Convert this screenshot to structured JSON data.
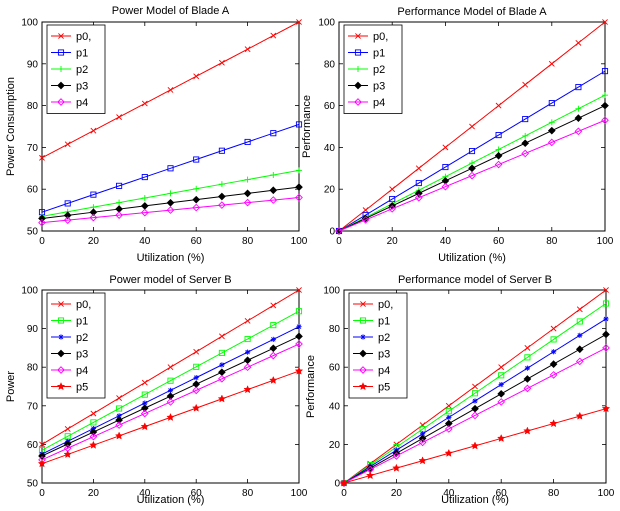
{
  "chart_data": [
    {
      "type": "line",
      "title": "Power Model of Blade A",
      "xlabel": "Utilization (%)",
      "ylabel": "Power Consumption",
      "xlim": [
        0,
        100
      ],
      "ylim": [
        50,
        100
      ],
      "xticks": [
        0,
        20,
        40,
        60,
        80,
        100
      ],
      "yticks": [
        50,
        60,
        70,
        80,
        90,
        100
      ],
      "grid": false,
      "legend_position": "top-left",
      "x": [
        0,
        10,
        20,
        30,
        40,
        50,
        60,
        70,
        80,
        90,
        100
      ],
      "series": [
        {
          "name": "p0,",
          "color": "#ff0000",
          "marker": "x",
          "values": [
            67.5,
            70.75,
            74.0,
            77.25,
            80.5,
            83.75,
            87.0,
            90.25,
            93.5,
            96.75,
            100.0
          ]
        },
        {
          "name": "p1",
          "color": "#0000ff",
          "marker": "square",
          "values": [
            54.5,
            56.6,
            58.7,
            60.8,
            62.9,
            65.0,
            67.1,
            69.2,
            71.3,
            73.4,
            75.5
          ]
        },
        {
          "name": "p2",
          "color": "#00ff00",
          "marker": "plus",
          "values": [
            53.5,
            54.6,
            55.7,
            56.8,
            57.9,
            59.0,
            60.1,
            61.2,
            62.3,
            63.4,
            64.5
          ]
        },
        {
          "name": "p3",
          "color": "#000000",
          "marker": "diamond-filled",
          "values": [
            53.0,
            53.75,
            54.5,
            55.25,
            56.0,
            56.75,
            57.5,
            58.25,
            59.0,
            59.75,
            60.5
          ]
        },
        {
          "name": "p4",
          "color": "#ff00ff",
          "marker": "diamond",
          "values": [
            52.0,
            52.6,
            53.2,
            53.8,
            54.4,
            55.0,
            55.6,
            56.2,
            56.8,
            57.4,
            58.0
          ]
        }
      ]
    },
    {
      "type": "line",
      "title": "Performance Model of Blade A",
      "xlabel": "Utilization (%)",
      "ylabel": "Performance",
      "xlim": [
        0,
        100
      ],
      "ylim": [
        0,
        100
      ],
      "xticks": [
        0,
        20,
        40,
        60,
        80,
        100
      ],
      "yticks": [
        0,
        20,
        40,
        60,
        80,
        100
      ],
      "grid": false,
      "legend_position": "top-left",
      "x": [
        0,
        10,
        20,
        30,
        40,
        50,
        60,
        70,
        80,
        90,
        100
      ],
      "series": [
        {
          "name": "p0,",
          "color": "#ff0000",
          "marker": "x",
          "values": [
            0,
            10,
            20,
            30,
            40,
            50,
            60,
            70,
            80,
            90,
            100
          ]
        },
        {
          "name": "p1",
          "color": "#0000ff",
          "marker": "square",
          "values": [
            0,
            7.65,
            15.3,
            22.95,
            30.6,
            38.25,
            45.9,
            53.55,
            61.2,
            68.85,
            76.5
          ]
        },
        {
          "name": "p2",
          "color": "#00ff00",
          "marker": "plus",
          "values": [
            0,
            6.5,
            13.0,
            19.5,
            26.0,
            32.5,
            39.0,
            45.5,
            52.0,
            58.5,
            65.0
          ]
        },
        {
          "name": "p3",
          "color": "#000000",
          "marker": "diamond-filled",
          "values": [
            0,
            6.0,
            12.0,
            18.0,
            24.0,
            30.0,
            36.0,
            42.0,
            48.0,
            54.0,
            60.0
          ]
        },
        {
          "name": "p4",
          "color": "#ff00ff",
          "marker": "diamond",
          "values": [
            0,
            5.3,
            10.6,
            15.9,
            21.2,
            26.5,
            31.8,
            37.1,
            42.4,
            47.7,
            53.0
          ]
        }
      ]
    },
    {
      "type": "line",
      "title": "Power model of Server B",
      "xlabel": "Utilization (%)",
      "ylabel": "Power",
      "xlim": [
        0,
        100
      ],
      "ylim": [
        50,
        100
      ],
      "xticks": [
        0,
        20,
        40,
        60,
        80,
        100
      ],
      "yticks": [
        50,
        60,
        70,
        80,
        90,
        100
      ],
      "grid": false,
      "legend_position": "top-left",
      "x": [
        0,
        10,
        20,
        30,
        40,
        50,
        60,
        70,
        80,
        90,
        100
      ],
      "series": [
        {
          "name": "p0,",
          "color": "#ff0000",
          "marker": "x",
          "values": [
            60.0,
            64.0,
            68.0,
            72.0,
            76.0,
            80.0,
            84.0,
            88.0,
            92.0,
            96.0,
            100.0
          ]
        },
        {
          "name": "p1",
          "color": "#00ff00",
          "marker": "square",
          "values": [
            58.5,
            62.1,
            65.7,
            69.3,
            72.9,
            76.5,
            80.1,
            83.7,
            87.3,
            90.9,
            94.5
          ]
        },
        {
          "name": "p2",
          "color": "#0000ff",
          "marker": "asterisk",
          "values": [
            57.5,
            60.8,
            64.1,
            67.4,
            70.7,
            74.0,
            77.3,
            80.6,
            83.9,
            87.2,
            90.5
          ]
        },
        {
          "name": "p3",
          "color": "#000000",
          "marker": "diamond-filled",
          "values": [
            57.0,
            60.1,
            63.2,
            66.3,
            69.4,
            72.5,
            75.6,
            78.7,
            81.8,
            84.9,
            88.0
          ]
        },
        {
          "name": "p4",
          "color": "#ff00ff",
          "marker": "diamond",
          "values": [
            56.0,
            59.0,
            62.0,
            65.0,
            68.0,
            71.0,
            74.0,
            77.0,
            80.0,
            83.0,
            86.0
          ]
        },
        {
          "name": "p5",
          "color": "#ff0000",
          "marker": "star",
          "values": [
            55.0,
            57.4,
            59.8,
            62.2,
            64.6,
            67.0,
            69.4,
            71.8,
            74.2,
            76.6,
            79.0
          ]
        }
      ]
    },
    {
      "type": "line",
      "title": "Performance model of Server B",
      "xlabel": "Utilization (%)",
      "ylabel": "Performance",
      "xlim": [
        0,
        100
      ],
      "ylim": [
        0,
        100
      ],
      "xticks": [
        0,
        20,
        40,
        60,
        80,
        100
      ],
      "yticks": [
        0,
        20,
        40,
        60,
        80,
        100
      ],
      "grid": false,
      "legend_position": "top-left",
      "x": [
        0,
        10,
        20,
        30,
        40,
        50,
        60,
        70,
        80,
        90,
        100
      ],
      "series": [
        {
          "name": "p0,",
          "color": "#ff0000",
          "marker": "x",
          "values": [
            0,
            10,
            20,
            30,
            40,
            50,
            60,
            70,
            80,
            90,
            100
          ]
        },
        {
          "name": "p1",
          "color": "#00ff00",
          "marker": "square",
          "values": [
            0,
            9.3,
            18.6,
            27.9,
            37.2,
            46.5,
            55.8,
            65.1,
            74.4,
            83.7,
            93.0
          ]
        },
        {
          "name": "p2",
          "color": "#0000ff",
          "marker": "asterisk",
          "values": [
            0,
            8.5,
            17.0,
            25.5,
            34.0,
            42.5,
            51.0,
            59.5,
            68.0,
            76.5,
            85.0
          ]
        },
        {
          "name": "p3",
          "color": "#000000",
          "marker": "diamond-filled",
          "values": [
            0,
            7.7,
            15.4,
            23.1,
            30.8,
            38.5,
            46.2,
            53.9,
            61.6,
            69.3,
            77.0
          ]
        },
        {
          "name": "p4",
          "color": "#ff00ff",
          "marker": "diamond",
          "values": [
            0,
            7.0,
            14.0,
            21.0,
            28.0,
            35.0,
            42.0,
            49.0,
            56.0,
            63.0,
            70.0
          ]
        },
        {
          "name": "p5",
          "color": "#ff0000",
          "marker": "star",
          "values": [
            0,
            3.85,
            7.7,
            11.55,
            15.4,
            19.25,
            23.1,
            26.95,
            30.8,
            34.65,
            38.5
          ]
        }
      ]
    }
  ]
}
